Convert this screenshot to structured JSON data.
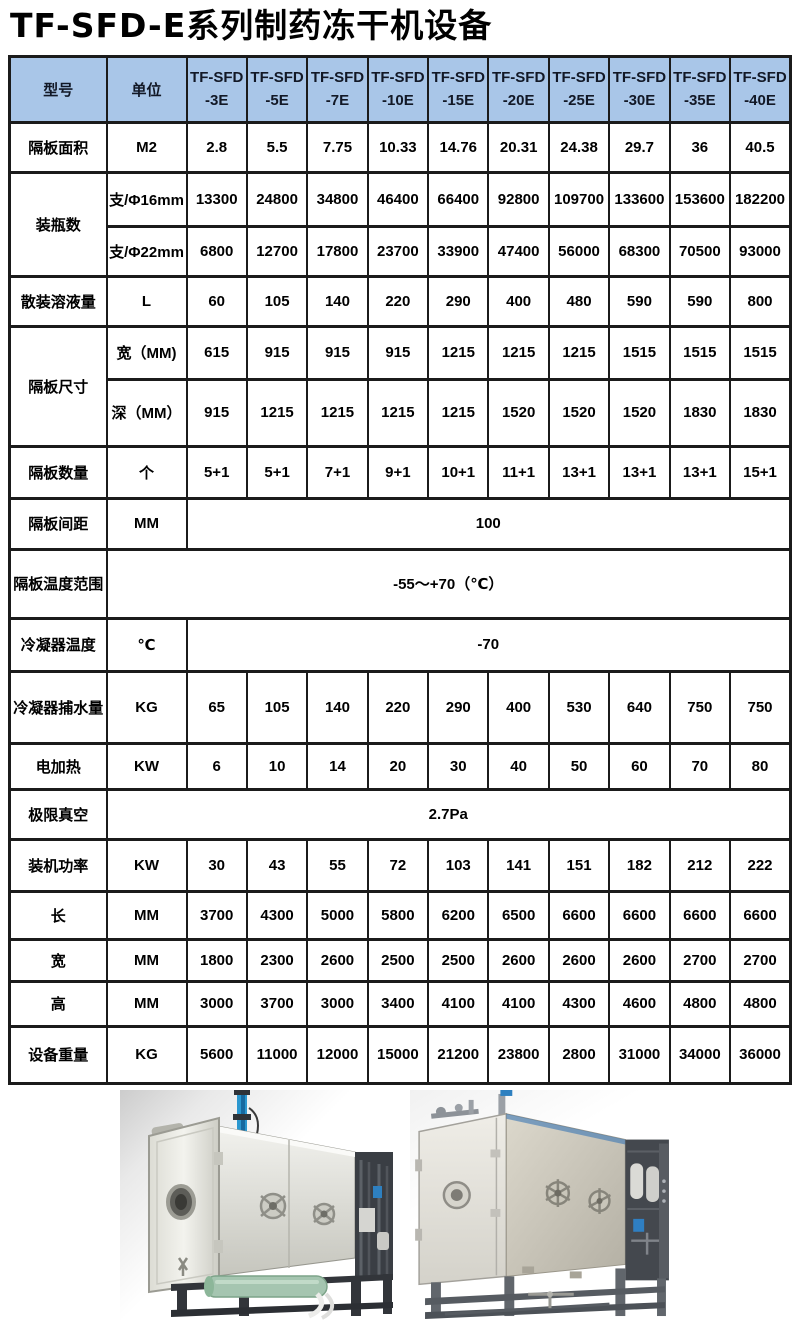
{
  "page": {
    "title": "TF-SFD-E系列制药冻干机设备"
  },
  "colors": {
    "header_bg": "#a9c6e8",
    "border": "#1b1b1b",
    "text": "#000000",
    "pipe_blue": "#2b97cf",
    "tank_green": "#9fc0ad",
    "frame_dark": "#3a3e44"
  },
  "table": {
    "header": {
      "model_label": "型号",
      "unit_label": "单位",
      "models": [
        {
          "l1": "TF-SFD",
          "l2": "-3E"
        },
        {
          "l1": "TF-SFD",
          "l2": "-5E"
        },
        {
          "l1": "TF-SFD",
          "l2": "-7E"
        },
        {
          "l1": "TF-SFD",
          "l2": "-10E"
        },
        {
          "l1": "TF-SFD",
          "l2": "-15E"
        },
        {
          "l1": "TF-SFD",
          "l2": "-20E"
        },
        {
          "l1": "TF-SFD",
          "l2": "-25E"
        },
        {
          "l1": "TF-SFD",
          "l2": "-30E"
        },
        {
          "l1": "TF-SFD",
          "l2": "-35E"
        },
        {
          "l1": "TF-SFD",
          "l2": "-40E"
        }
      ]
    },
    "rows": [
      {
        "kind": "simple",
        "label": "隔板面积",
        "unit": "M2",
        "values": [
          "2.8",
          "5.5",
          "7.75",
          "10.33",
          "14.76",
          "20.31",
          "24.38",
          "29.7",
          "36",
          "40.5"
        ]
      },
      {
        "kind": "group",
        "label": "装瓶数",
        "subrows": [
          {
            "unit": "支/Φ16mm",
            "values": [
              "13300",
              "24800",
              "34800",
              "46400",
              "66400",
              "92800",
              "109700",
              "133600",
              "153600",
              "182200"
            ]
          },
          {
            "unit": "支/Φ22mm",
            "values": [
              "6800",
              "12700",
              "17800",
              "23700",
              "33900",
              "47400",
              "56000",
              "68300",
              "70500",
              "93000"
            ]
          }
        ]
      },
      {
        "kind": "simple",
        "label": "散装溶液量",
        "unit": "L",
        "values": [
          "60",
          "105",
          "140",
          "220",
          "290",
          "400",
          "480",
          "590",
          "590",
          "800"
        ]
      },
      {
        "kind": "group",
        "label": "隔板尺寸",
        "subrows": [
          {
            "unit": "宽（MM)",
            "values": [
              "615",
              "915",
              "915",
              "915",
              "1215",
              "1215",
              "1215",
              "1515",
              "1515",
              "1515"
            ]
          },
          {
            "unit": "深（MM）",
            "values": [
              "915",
              "1215",
              "1215",
              "1215",
              "1215",
              "1520",
              "1520",
              "1520",
              "1830",
              "1830"
            ]
          }
        ]
      },
      {
        "kind": "simple",
        "label": "隔板数量",
        "unit": "个",
        "values": [
          "5+1",
          "5+1",
          "7+1",
          "9+1",
          "10+1",
          "11+1",
          "13+1",
          "13+1",
          "13+1",
          "15+1"
        ]
      },
      {
        "kind": "span10",
        "label": "隔板间距",
        "unit": "MM",
        "value": "100"
      },
      {
        "kind": "span11",
        "label": "隔板温度范围",
        "value": "-55～+70（℃）"
      },
      {
        "kind": "span10",
        "label": "冷凝器温度",
        "unit": "℃",
        "value": "-70"
      },
      {
        "kind": "simple",
        "label": "冷凝器捕水量",
        "unit": "KG",
        "values": [
          "65",
          "105",
          "140",
          "220",
          "290",
          "400",
          "530",
          "640",
          "750",
          "750"
        ]
      },
      {
        "kind": "simple",
        "label": "电加热",
        "unit": "KW",
        "values": [
          "6",
          "10",
          "14",
          "20",
          "30",
          "40",
          "50",
          "60",
          "70",
          "80"
        ]
      },
      {
        "kind": "span11",
        "label": "极限真空",
        "value": "2.7Pa"
      },
      {
        "kind": "simple",
        "label": "装机功率",
        "unit": "KW",
        "values": [
          "30",
          "43",
          "55",
          "72",
          "103",
          "141",
          "151",
          "182",
          "212",
          "222"
        ]
      },
      {
        "kind": "simple",
        "label": "长",
        "unit": "MM",
        "values": [
          "3700",
          "4300",
          "5000",
          "5800",
          "6200",
          "6500",
          "6600",
          "6600",
          "6600",
          "6600"
        ]
      },
      {
        "kind": "simple",
        "label": "宽",
        "unit": "MM",
        "values": [
          "1800",
          "2300",
          "2600",
          "2500",
          "2500",
          "2600",
          "2600",
          "2600",
          "2700",
          "2700"
        ]
      },
      {
        "kind": "simple",
        "label": "高",
        "unit": "MM",
        "values": [
          "3000",
          "3700",
          "3000",
          "3400",
          "4100",
          "4100",
          "4300",
          "4600",
          "4800",
          "4800"
        ]
      },
      {
        "kind": "simple",
        "label": "设备重量",
        "unit": "KG",
        "values": [
          "5600",
          "11000",
          "12000",
          "15000",
          "21200",
          "23800",
          "2800",
          "31000",
          "34000",
          "36000"
        ]
      }
    ]
  },
  "photos": {
    "left": "freeze-dryer-machine-left-view",
    "right": "freeze-dryer-machine-right-view"
  }
}
